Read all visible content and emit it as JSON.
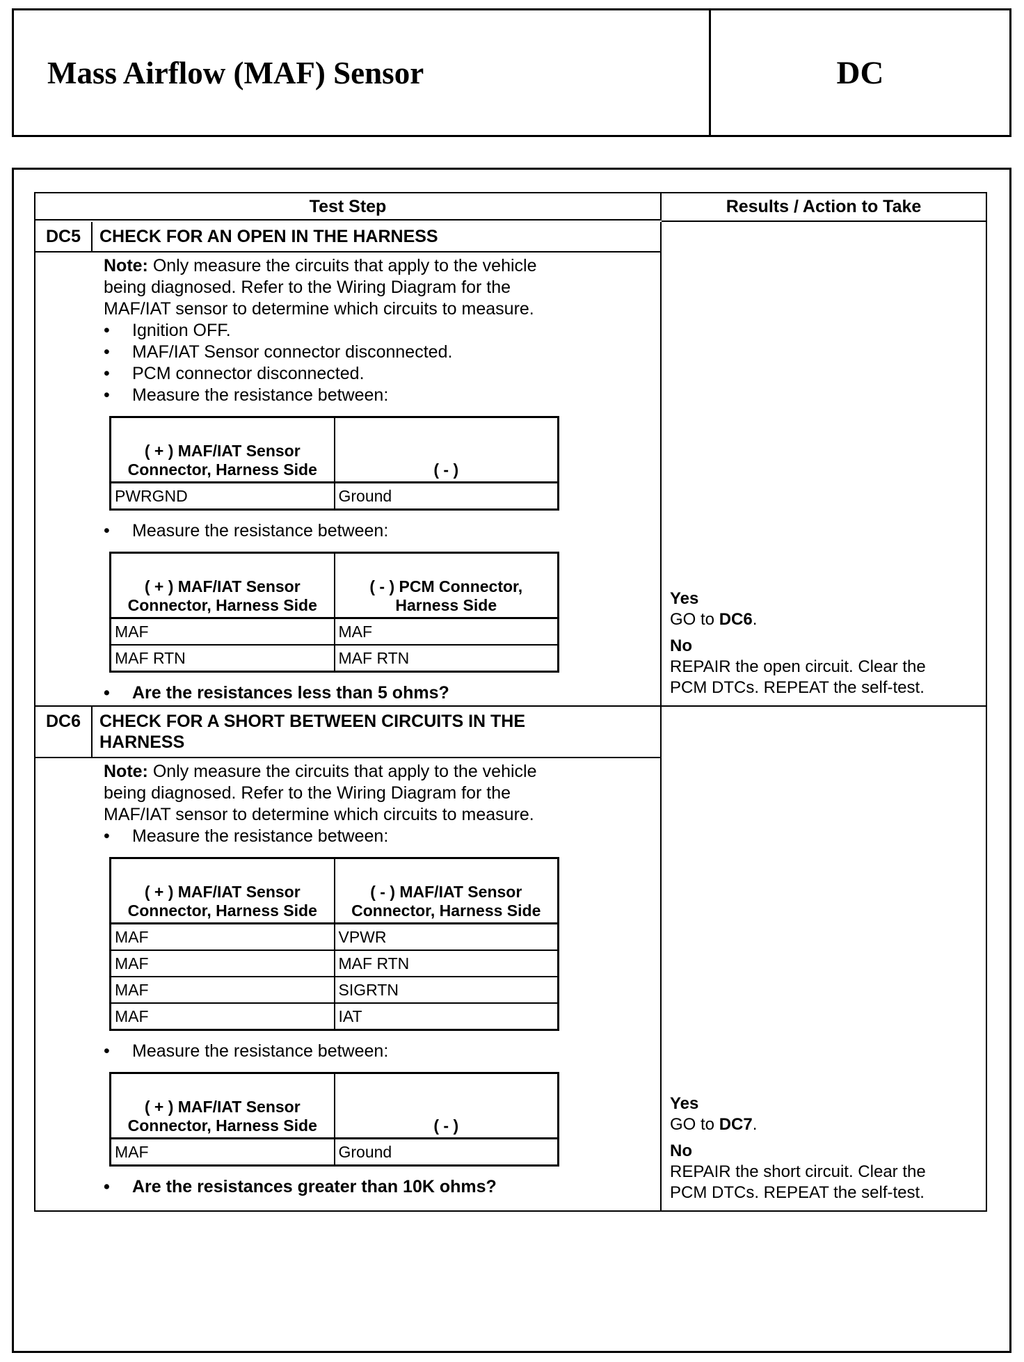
{
  "header": {
    "title": "Mass Airflow (MAF) Sensor",
    "code": "DC"
  },
  "table": {
    "col_step": "Test Step",
    "col_results": "Results / Action to Take"
  },
  "steps": [
    {
      "code": "DC5",
      "title": "CHECK FOR AN OPEN IN THE HARNESS",
      "note_label": "Note:",
      "note_lines": [
        " Only measure the circuits that apply to the vehicle",
        "being diagnosed. Refer to the Wiring Diagram for the",
        "MAF/IAT sensor to determine which circuits to measure."
      ],
      "bullets": [
        "Ignition OFF.",
        "MAF/IAT Sensor connector disconnected.",
        "PCM connector disconnected.",
        "Measure the resistance between:"
      ],
      "table1": {
        "h1": "( + ) MAF/IAT Sensor Connector, Harness Side",
        "h2": "( - )",
        "rows": [
          [
            "PWRGND",
            "Ground"
          ]
        ]
      },
      "bullet2": "Measure the resistance between:",
      "table2": {
        "h1": "( + ) MAF/IAT Sensor Connector, Harness Side",
        "h2": "( - ) PCM Connector, Harness Side",
        "rows": [
          [
            "MAF",
            "MAF"
          ],
          [
            "MAF RTN",
            "MAF RTN"
          ]
        ]
      },
      "question": "Are the resistances less than 5 ohms?",
      "yes_label": "Yes",
      "yes_text": "GO to ",
      "yes_target": "DC6",
      "yes_end": ".",
      "no_label": "No",
      "no_lines": [
        "REPAIR the open circuit. Clear the",
        "PCM DTCs. REPEAT the self-test."
      ]
    },
    {
      "code": "DC6",
      "title_lines": [
        "CHECK FOR A SHORT BETWEEN CIRCUITS IN THE",
        "HARNESS"
      ],
      "note_label": "Note:",
      "note_lines": [
        " Only measure the circuits that apply to the vehicle",
        "being diagnosed. Refer to the Wiring Diagram for the",
        "MAF/IAT sensor to determine which circuits to measure."
      ],
      "bullets": [
        "Measure the resistance between:"
      ],
      "table1": {
        "h1": "( + ) MAF/IAT Sensor Connector, Harness Side",
        "h2": "( - ) MAF/IAT Sensor Connector, Harness Side",
        "rows": [
          [
            "MAF",
            "VPWR"
          ],
          [
            "MAF",
            "MAF RTN"
          ],
          [
            "MAF",
            "SIGRTN"
          ],
          [
            "MAF",
            "IAT"
          ]
        ]
      },
      "bullet2": "Measure the resistance between:",
      "table2": {
        "h1": "( + ) MAF/IAT Sensor Connector, Harness Side",
        "h2": "( - )",
        "rows": [
          [
            "MAF",
            "Ground"
          ]
        ]
      },
      "question": "Are the resistances greater than 10K ohms?",
      "yes_label": "Yes",
      "yes_text": "GO to ",
      "yes_target": "DC7",
      "yes_end": ".",
      "no_label": "No",
      "no_lines": [
        "REPAIR the short circuit. Clear the",
        "PCM DTCs. REPEAT the self-test."
      ]
    }
  ]
}
